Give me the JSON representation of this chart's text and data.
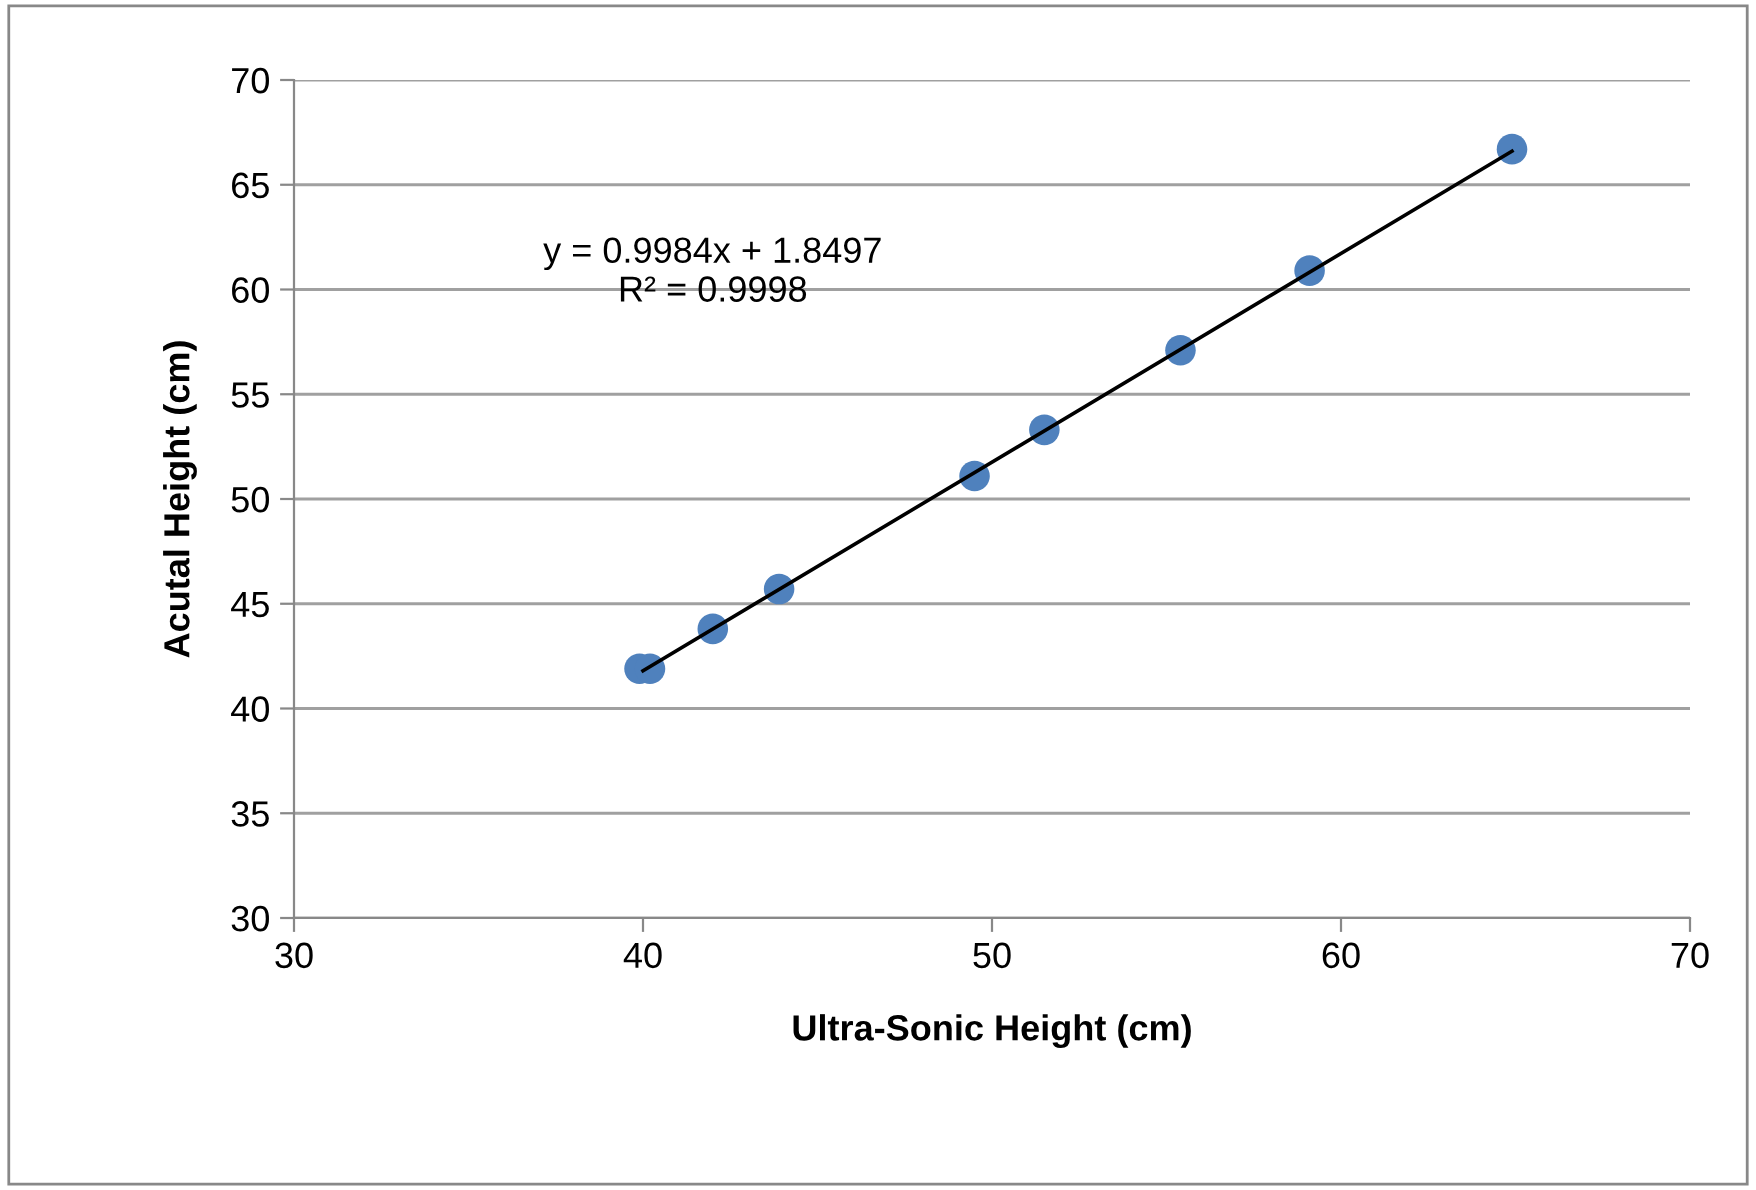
{
  "chart_data": {
    "type": "scatter",
    "xlabel": "Ultra-Sonic Height (cm)",
    "ylabel": "Acutal Height (cm)",
    "xlim": [
      30,
      70
    ],
    "xticks": [
      30,
      40,
      50,
      60,
      70
    ],
    "ylim": [
      30,
      70
    ],
    "yticks": [
      30,
      35,
      40,
      45,
      50,
      55,
      60,
      65,
      70
    ],
    "grid": "y",
    "legend": false,
    "marker": "circle",
    "series": [
      {
        "color": "#4f81bd",
        "x": [
          39.9,
          40.2,
          42.0,
          43.9,
          49.5,
          51.5,
          55.4,
          59.1,
          64.9
        ],
        "values": [
          41.9,
          41.9,
          43.8,
          45.7,
          51.1,
          53.3,
          57.1,
          60.9,
          66.7
        ]
      },
      {
        "type": "line",
        "color": "#000000",
        "marker": "none",
        "line_style": "solid",
        "x": [
          40.0,
          64.9
        ],
        "values": [
          41.8,
          66.6
        ]
      }
    ],
    "annotations": [
      "y = 0.9984x + 1.8497\nR² = 0.9998"
    ]
  }
}
